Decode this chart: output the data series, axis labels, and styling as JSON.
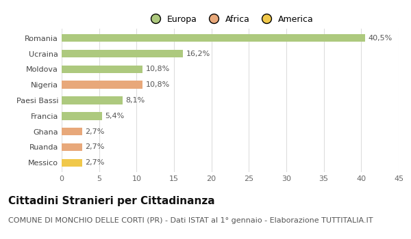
{
  "categories": [
    "Romania",
    "Ucraina",
    "Moldova",
    "Nigeria",
    "Paesi Bassi",
    "Francia",
    "Ghana",
    "Ruanda",
    "Messico"
  ],
  "values": [
    40.5,
    16.2,
    10.8,
    10.8,
    8.1,
    5.4,
    2.7,
    2.7,
    2.7
  ],
  "labels": [
    "40,5%",
    "16,2%",
    "10,8%",
    "10,8%",
    "8,1%",
    "5,4%",
    "2,7%",
    "2,7%",
    "2,7%"
  ],
  "colors": [
    "#adc97e",
    "#adc97e",
    "#adc97e",
    "#e8a87a",
    "#adc97e",
    "#adc97e",
    "#e8a87a",
    "#e8a87a",
    "#f0c84a"
  ],
  "legend_labels": [
    "Europa",
    "Africa",
    "America"
  ],
  "legend_colors": [
    "#adc97e",
    "#e8a87a",
    "#f0c84a"
  ],
  "xlim": [
    0,
    45
  ],
  "xticks": [
    0,
    5,
    10,
    15,
    20,
    25,
    30,
    35,
    40,
    45
  ],
  "title": "Cittadini Stranieri per Cittadinanza",
  "subtitle": "COMUNE DI MONCHIO DELLE CORTI (PR) - Dati ISTAT al 1° gennaio - Elaborazione TUTTITALIA.IT",
  "background_color": "#ffffff",
  "grid_color": "#dddddd",
  "bar_height": 0.5,
  "title_fontsize": 11,
  "subtitle_fontsize": 8,
  "label_fontsize": 8,
  "tick_fontsize": 8,
  "legend_fontsize": 9
}
